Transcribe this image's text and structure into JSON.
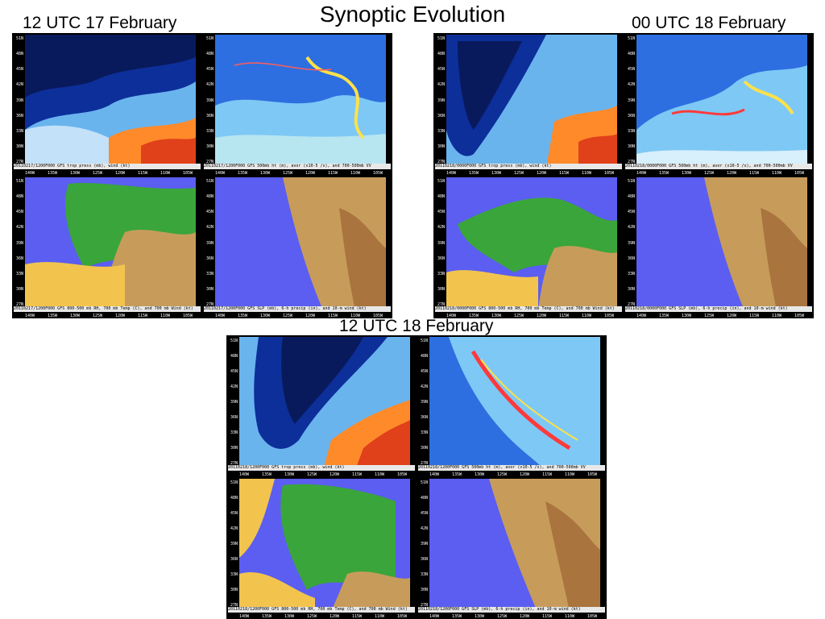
{
  "title": "Synoptic Evolution",
  "time_labels": [
    "12 UTC 17 February",
    "00 UTC 18 February",
    "12 UTC 18 February"
  ],
  "lat_ticks": [
    "51N",
    "48N",
    "45N",
    "42N",
    "39N",
    "36N",
    "33N",
    "30N",
    "27N"
  ],
  "lon_ticks": [
    "140W",
    "135W",
    "130W",
    "125W",
    "120W",
    "115W",
    "110W",
    "105W"
  ],
  "groups": [
    {
      "panels": [
        {
          "caption": "20110217/1200F000 GFS trop press (mb), wind (kt)"
        },
        {
          "caption": "20110217/1200F000 GFS 500mb ht (m), avor (x10-5 /s), and 700-500mb VV"
        },
        {
          "caption": "20110217/1200F000 GFS 800-500 mb RH, 700 mb Temp (C), and 700 mb Wind (kt)"
        },
        {
          "caption": "20110217/1200F000 GFS SLP (mb), 6-h precip (in), and 10-m wind (kt)"
        }
      ]
    },
    {
      "panels": [
        {
          "caption": "20110218/0000F000 GFS trop press (mb), wind (kt)"
        },
        {
          "caption": "20110218/0000F000 GFS 500mb ht (m), avor (x10-5 /s), and 700-500mb VV"
        },
        {
          "caption": "20110218/0000F000 GFS 800-500 mb RH, 700 mb Temp (C), and 700 mb Wind (kt)"
        },
        {
          "caption": "20110218/0000F000 GFS SLP (mb), 6-h precip (in), and 10-m wind (kt)"
        }
      ]
    },
    {
      "panels": [
        {
          "caption": "20110218/1200F000 GFS trop press (mb), wind (kt)"
        },
        {
          "caption": "20110218/1200F000 GFS 500mb ht (m), avor (x10-5 /s), and 700-500mb VV"
        },
        {
          "caption": "20110218/1200F000 GFS 800-500 mb RH, 700 mb Temp (C), and 700 mb Wind (kt)"
        },
        {
          "caption": "20110218/1200F000 GFS SLP (mb), 6-h precip (in), and 10-m wind (kt)"
        }
      ]
    }
  ]
}
